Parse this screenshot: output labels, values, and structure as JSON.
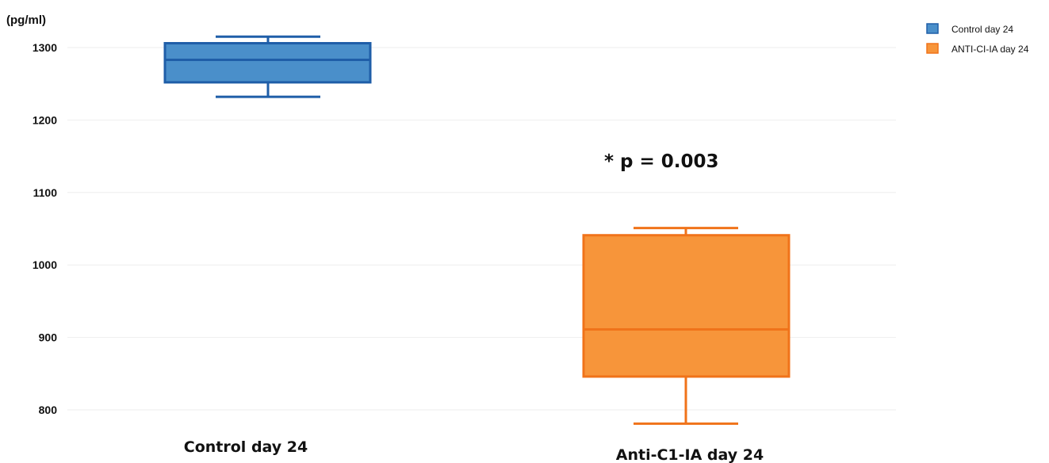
{
  "chart_data": {
    "type": "box",
    "ylabel": "(pg/ml)",
    "ylim": [
      780,
      1330
    ],
    "yticks": [
      800,
      900,
      1000,
      1100,
      1200,
      1300
    ],
    "grid": true,
    "legend_position": "top-right",
    "annotation": "* p = 0.003",
    "categories": [
      "Control day 24",
      "Anti-C1-IA day 24"
    ],
    "series": [
      {
        "name": "Control day 24",
        "legend_label": "Control day 24",
        "color_fill": "#4a8fca",
        "color_line": "#1f5ea8",
        "whisker_low": 1232,
        "q1": 1252,
        "median": 1283,
        "q3": 1306,
        "whisker_high": 1315
      },
      {
        "name": "Anti-C1-IA day 24",
        "legend_label": "ANTI-CI-IA day 24",
        "color_fill": "#f7953a",
        "color_line": "#f0731a",
        "whisker_low": 781,
        "q1": 846,
        "median": 911,
        "q3": 1041,
        "whisker_high": 1051
      }
    ]
  }
}
